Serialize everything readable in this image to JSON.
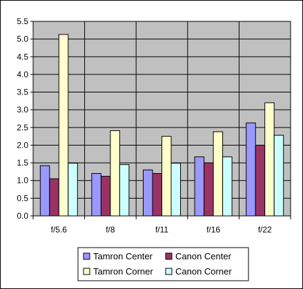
{
  "chart_data": {
    "type": "bar",
    "categories": [
      "f/5.6",
      "f/8",
      "f/11",
      "f/16",
      "f/22"
    ],
    "series": [
      {
        "name": "Tamron Center",
        "values": [
          1.42,
          1.2,
          1.3,
          1.67,
          2.63
        ],
        "color": "#9999ff"
      },
      {
        "name": "Canon Center",
        "values": [
          1.05,
          1.12,
          1.2,
          1.5,
          2.0
        ],
        "color": "#993366"
      },
      {
        "name": "Tamron Corner",
        "values": [
          5.13,
          2.41,
          2.25,
          2.38,
          3.2
        ],
        "color": "#ffffcc"
      },
      {
        "name": "Canon Corner",
        "values": [
          1.49,
          1.45,
          1.49,
          1.67,
          2.28
        ],
        "color": "#ccffff"
      }
    ],
    "yticks": [
      "0.0",
      "0.5",
      "1.0",
      "1.5",
      "2.0",
      "2.5",
      "3.0",
      "3.5",
      "4.0",
      "4.5",
      "5.0",
      "5.5"
    ],
    "ylim": [
      0,
      5.5
    ],
    "title": "",
    "xlabel": "",
    "ylabel": "",
    "plot_background": "#c0c0c0",
    "grid": "horizontal and vertical category separators",
    "legend_position": "bottom"
  }
}
